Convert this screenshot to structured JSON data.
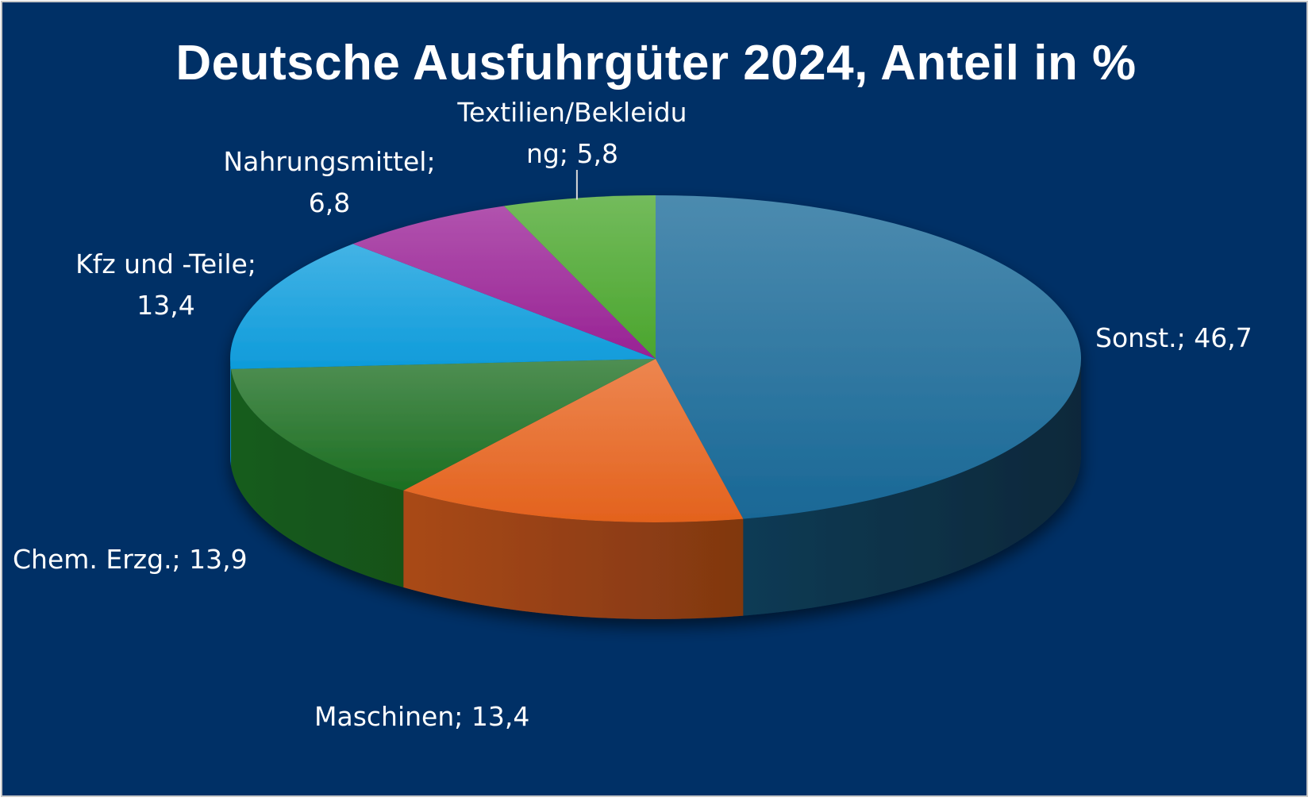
{
  "chart_data": {
    "type": "pie",
    "style": "3d",
    "title": "Deutsche Ausfuhrgüter 2024, Anteil in %",
    "slices": [
      {
        "label": "Sonst.",
        "value": 46.7,
        "text": "Sonst.; 46,7",
        "color": "#1a6a99"
      },
      {
        "label": "Maschinen",
        "value": 13.4,
        "text": "Maschinen; 13,4",
        "color": "#e8641e"
      },
      {
        "label": "Chem. Erzg.",
        "value": 13.9,
        "text": "Chem. Erzg.; 13,9",
        "color": "#1d7022"
      },
      {
        "label": "Kfz und -Teile",
        "value": 13.4,
        "text": "Kfz und -Teile; 13,4",
        "color": "#0e9ede"
      },
      {
        "label": "Nahrungsmittel",
        "value": 6.8,
        "text": "Nahrungsmittel; 6,8",
        "color": "#9b2397"
      },
      {
        "label": "Textilien/Bekleidung",
        "value": 5.8,
        "text": "Textilien/Bekleidung; 5,8",
        "color": "#4ba82e"
      }
    ]
  },
  "colors": {
    "background": "#003066",
    "border": "#c9c9c9",
    "text": "#ffffff"
  }
}
